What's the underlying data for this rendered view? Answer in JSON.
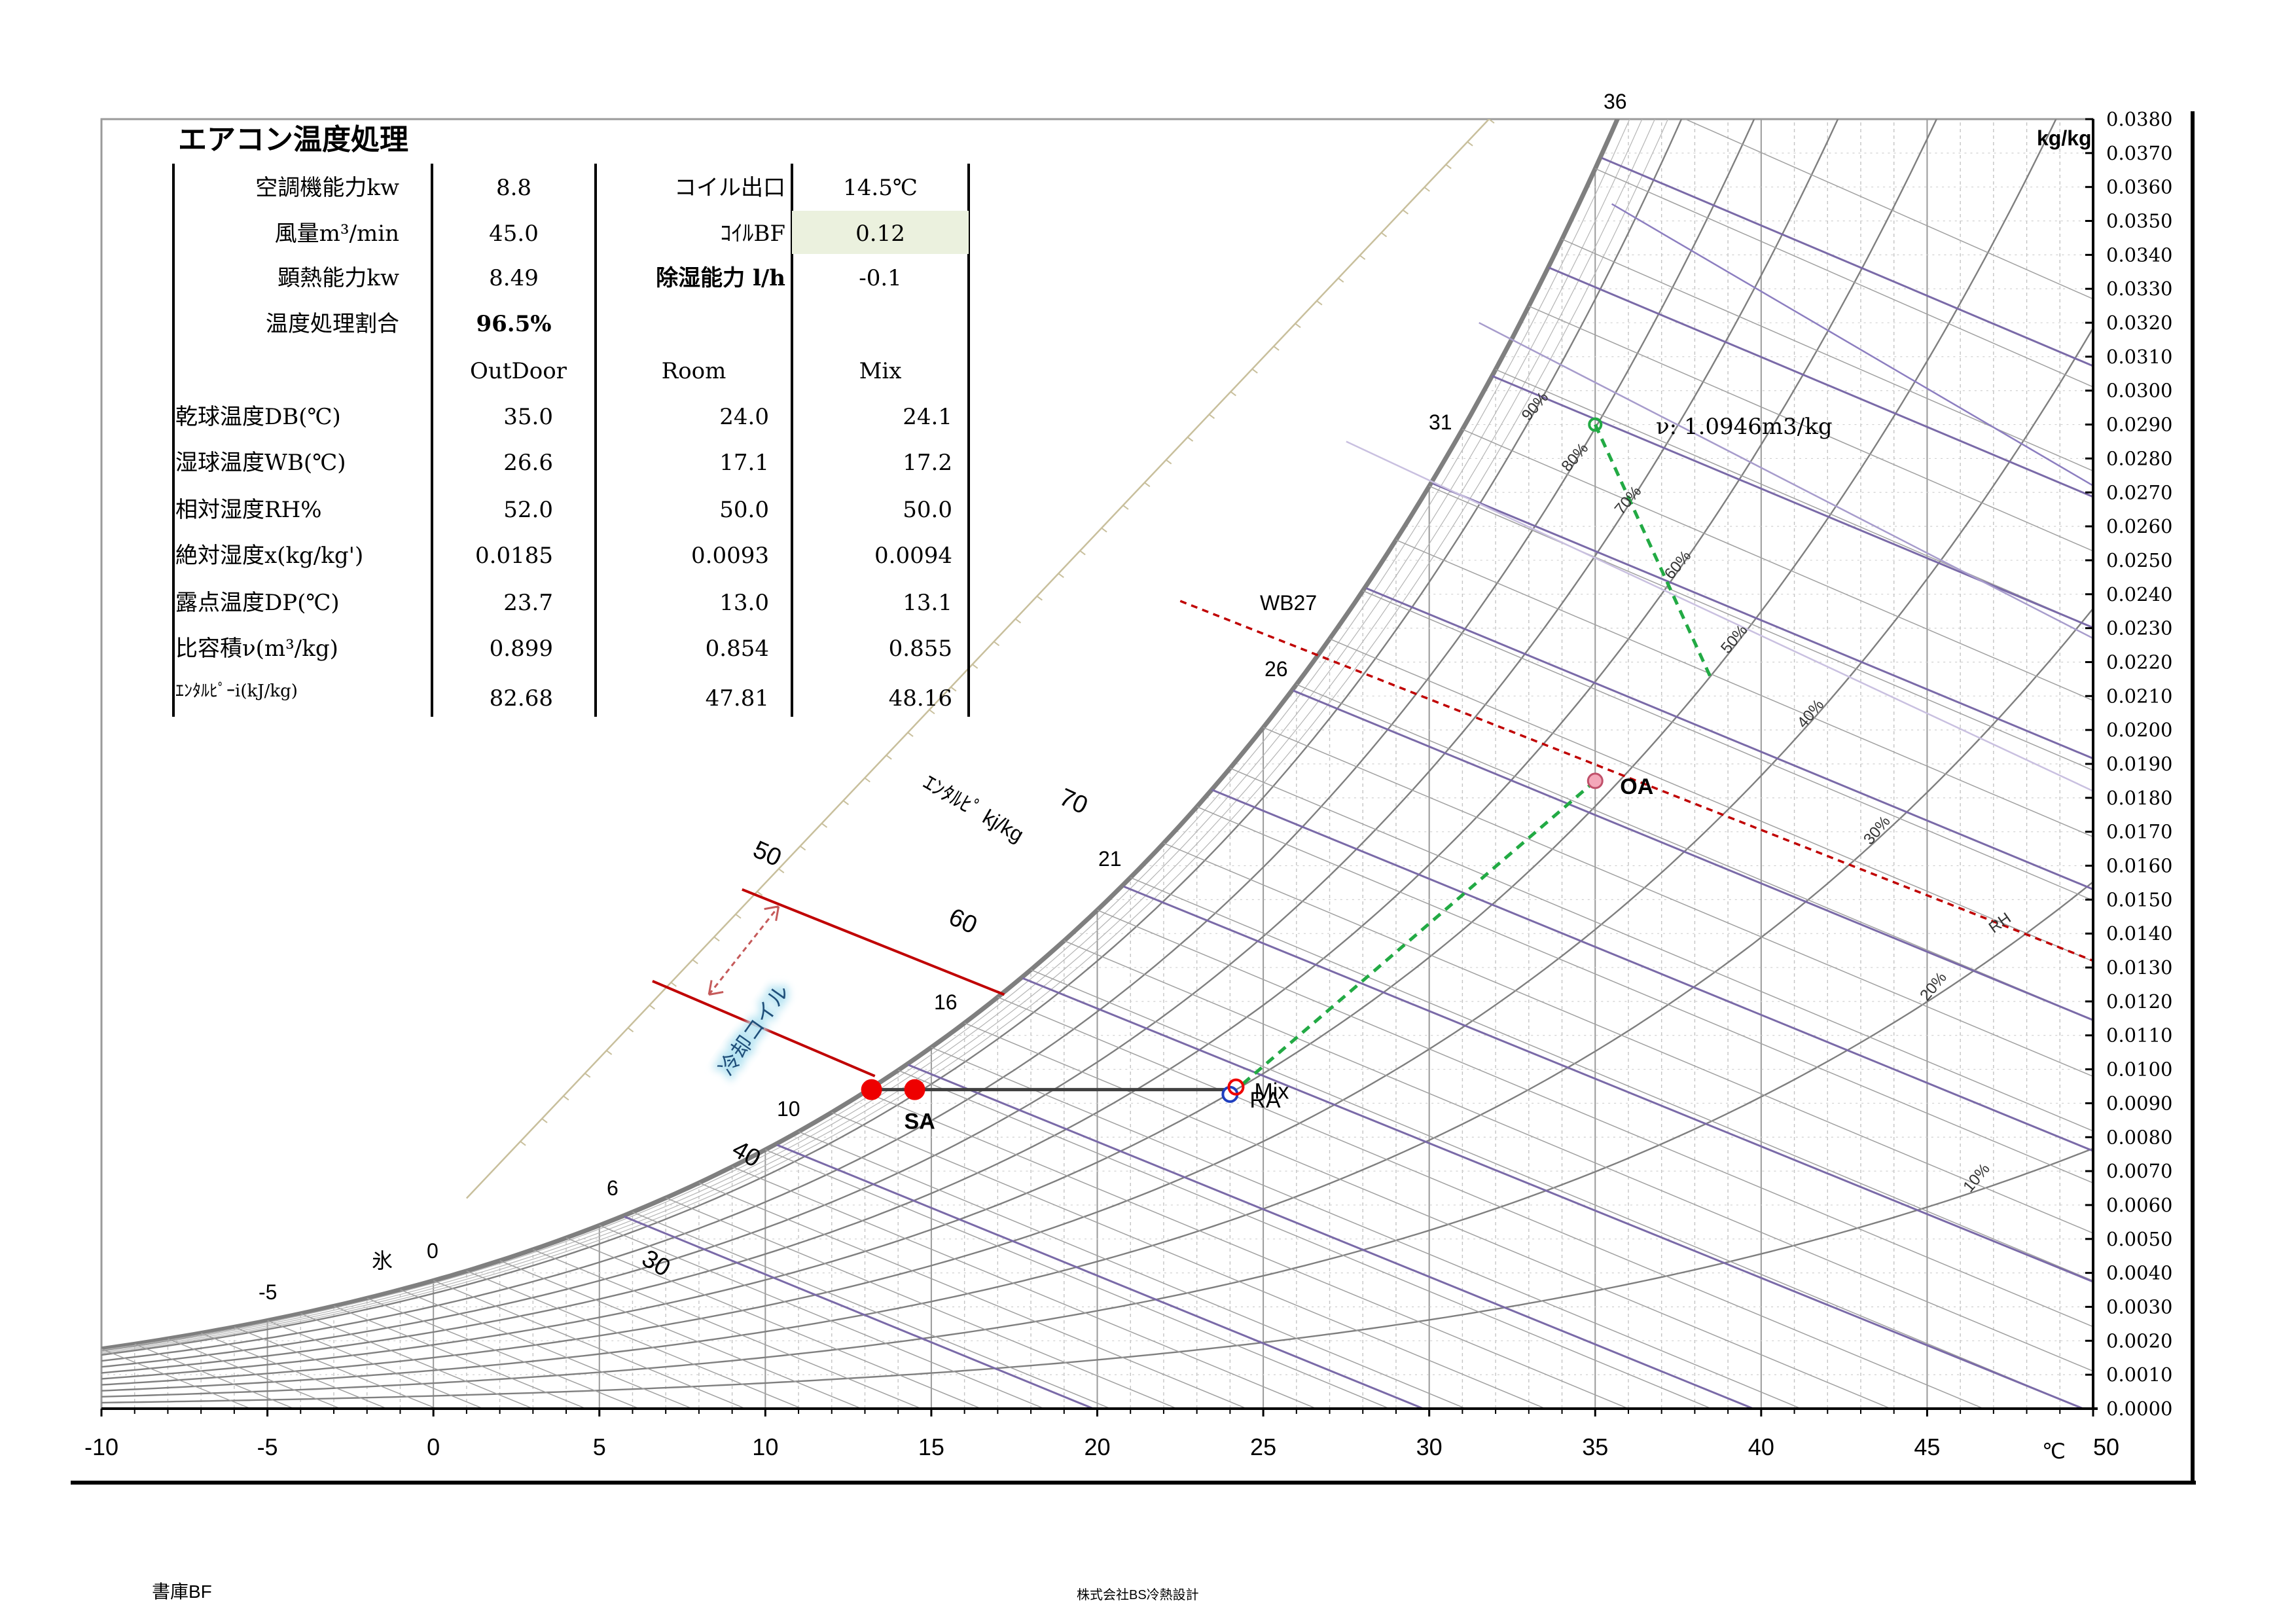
{
  "chart_data": {
    "type": "psychrometric",
    "title": "エアコン温度処理",
    "x_unit": "℃",
    "y_unit": "kg/kg",
    "xlim": [
      -10,
      50
    ],
    "ylim": [
      0,
      0.038
    ],
    "x_ticks": [
      -10,
      -5,
      0,
      5,
      10,
      15,
      20,
      25,
      30,
      35,
      40,
      45,
      50
    ],
    "y_ticks": [
      "0.0000",
      "0.0010",
      "0.0020",
      "0.0030",
      "0.0040",
      "0.0050",
      "0.0060",
      "0.0070",
      "0.0080",
      "0.0090",
      "0.0100",
      "0.0110",
      "0.0120",
      "0.0130",
      "0.0140",
      "0.0150",
      "0.0160",
      "0.0170",
      "0.0180",
      "0.0190",
      "0.0200",
      "0.0210",
      "0.0220",
      "0.0230",
      "0.0240",
      "0.0250",
      "0.0260",
      "0.0270",
      "0.0280",
      "0.0290",
      "0.0300",
      "0.0310",
      "0.0320",
      "0.0330",
      "0.0340",
      "0.0350",
      "0.0360",
      "0.0370",
      "0.0380"
    ],
    "rh_curves": [
      10,
      20,
      30,
      40,
      50,
      60,
      70,
      80,
      90,
      100
    ],
    "rh_labels": [
      {
        "text": "10%",
        "rh": 10,
        "t": 46.3
      },
      {
        "text": "20%",
        "rh": 20,
        "t": 45.0
      },
      {
        "text": "30%",
        "rh": 30,
        "t": 43.3
      },
      {
        "text": "40%",
        "rh": 40,
        "t": 41.3
      },
      {
        "text": "50%",
        "rh": 50,
        "t": 39.0
      },
      {
        "text": "60%",
        "rh": 60,
        "t": 37.3
      },
      {
        "text": "70%",
        "rh": 70,
        "t": 35.8
      },
      {
        "text": "80%",
        "rh": 80,
        "t": 34.2
      },
      {
        "text": "90%",
        "rh": 90,
        "t": 33.0
      }
    ],
    "rh_axis_label": "RH",
    "wet_bulb_labels": [
      {
        "text": "-5",
        "t": -5
      },
      {
        "text": "0",
        "t": 0
      },
      {
        "text": "6",
        "t": 6
      },
      {
        "text": "10",
        "t": 10
      },
      {
        "text": "16",
        "t": 16
      },
      {
        "text": "21",
        "t": 21
      },
      {
        "text": "26",
        "t": 26
      },
      {
        "text": "31",
        "t": 31
      },
      {
        "text": "36",
        "t": 36
      }
    ],
    "enthalpy_lines": [
      20,
      30,
      40,
      50,
      60,
      70,
      80,
      90,
      100,
      110,
      120,
      130
    ],
    "enthalpy_labels": [
      {
        "text": "30",
        "h": 30
      },
      {
        "text": "40",
        "h": 40
      },
      {
        "text": "50",
        "h": 50
      },
      {
        "text": "60",
        "h": 60
      },
      {
        "text": "70",
        "h": 70
      }
    ],
    "enthalpy_axis_label": "ｴﾝﾀﾙﾋﾟ kj/kg",
    "ice_label": "氷",
    "wb27_label": "WB27",
    "specific_volume_label": "ν: 1.0946m3/kg",
    "coil_label": "冷却コイル",
    "coil_h_range": [
      40.7,
      50.0
    ],
    "points": [
      {
        "name": "OA",
        "label": "OA",
        "db": 35.0,
        "x": 0.0185
      },
      {
        "name": "RA",
        "label": "RA",
        "db": 24.0,
        "x": 0.0093
      },
      {
        "name": "Mix",
        "label": "Mix",
        "db": 24.1,
        "x": 0.0094
      },
      {
        "name": "SA",
        "label": "SA",
        "db": 14.5,
        "x": 0.0094
      },
      {
        "name": "Coil-ADP",
        "label": "",
        "db": 13.2,
        "x": 0.0094
      }
    ],
    "colors": {
      "saturation": "#7f7f7f",
      "rh_line": "#7f7f7f",
      "enthalpy_line": "#7a6aa8",
      "wb27_line": "#c00000",
      "coil_line": "#c00000",
      "green_dashed": "#22aa44",
      "process_line": "#404040",
      "point_red": "#ee0000",
      "point_pink": "#f4a7b9",
      "text_blue": "#1f4e79"
    }
  },
  "table": {
    "rows_top": [
      {
        "label": "空調機能力kw",
        "value": "8.8",
        "label2": "コイル出口",
        "value2": "14.5℃"
      },
      {
        "label": "風量m³/min",
        "value": "45.0",
        "label2": "ｺｲﾙBF",
        "value2": "0.12"
      },
      {
        "label": "顕熱能力kw",
        "value": "8.49",
        "label2": "除湿能力 l/h",
        "value2": "-0.1"
      },
      {
        "label": "温度処理割合",
        "value": "96.5%",
        "label2": "",
        "value2": ""
      }
    ],
    "headers": [
      "OutDoor",
      "Room",
      "Mix"
    ],
    "rows": [
      {
        "label": "乾球温度DB(℃)",
        "values": [
          "35.0",
          "24.0",
          "24.1"
        ]
      },
      {
        "label": "湿球温度WB(℃)",
        "values": [
          "26.6",
          "17.1",
          "17.2"
        ]
      },
      {
        "label": "相対湿度RH%",
        "values": [
          "52.0",
          "50.0",
          "50.0"
        ]
      },
      {
        "label": "絶対湿度x(kg/kg')",
        "values": [
          "0.0185",
          "0.0093",
          "0.0094"
        ]
      },
      {
        "label": "露点温度DP(℃)",
        "values": [
          "23.7",
          "13.0",
          "13.1"
        ]
      },
      {
        "label": "比容積ν(m³/kg)",
        "values": [
          "0.899",
          "0.854",
          "0.855"
        ]
      },
      {
        "label": "ｴﾝﾀﾙﾋﾟｰi(kJ/kg)",
        "values": [
          "82.68",
          "47.81",
          "48.16"
        ]
      }
    ]
  },
  "footer": {
    "left": "書庫BF",
    "center": "株式会社BS冷熱設計"
  }
}
